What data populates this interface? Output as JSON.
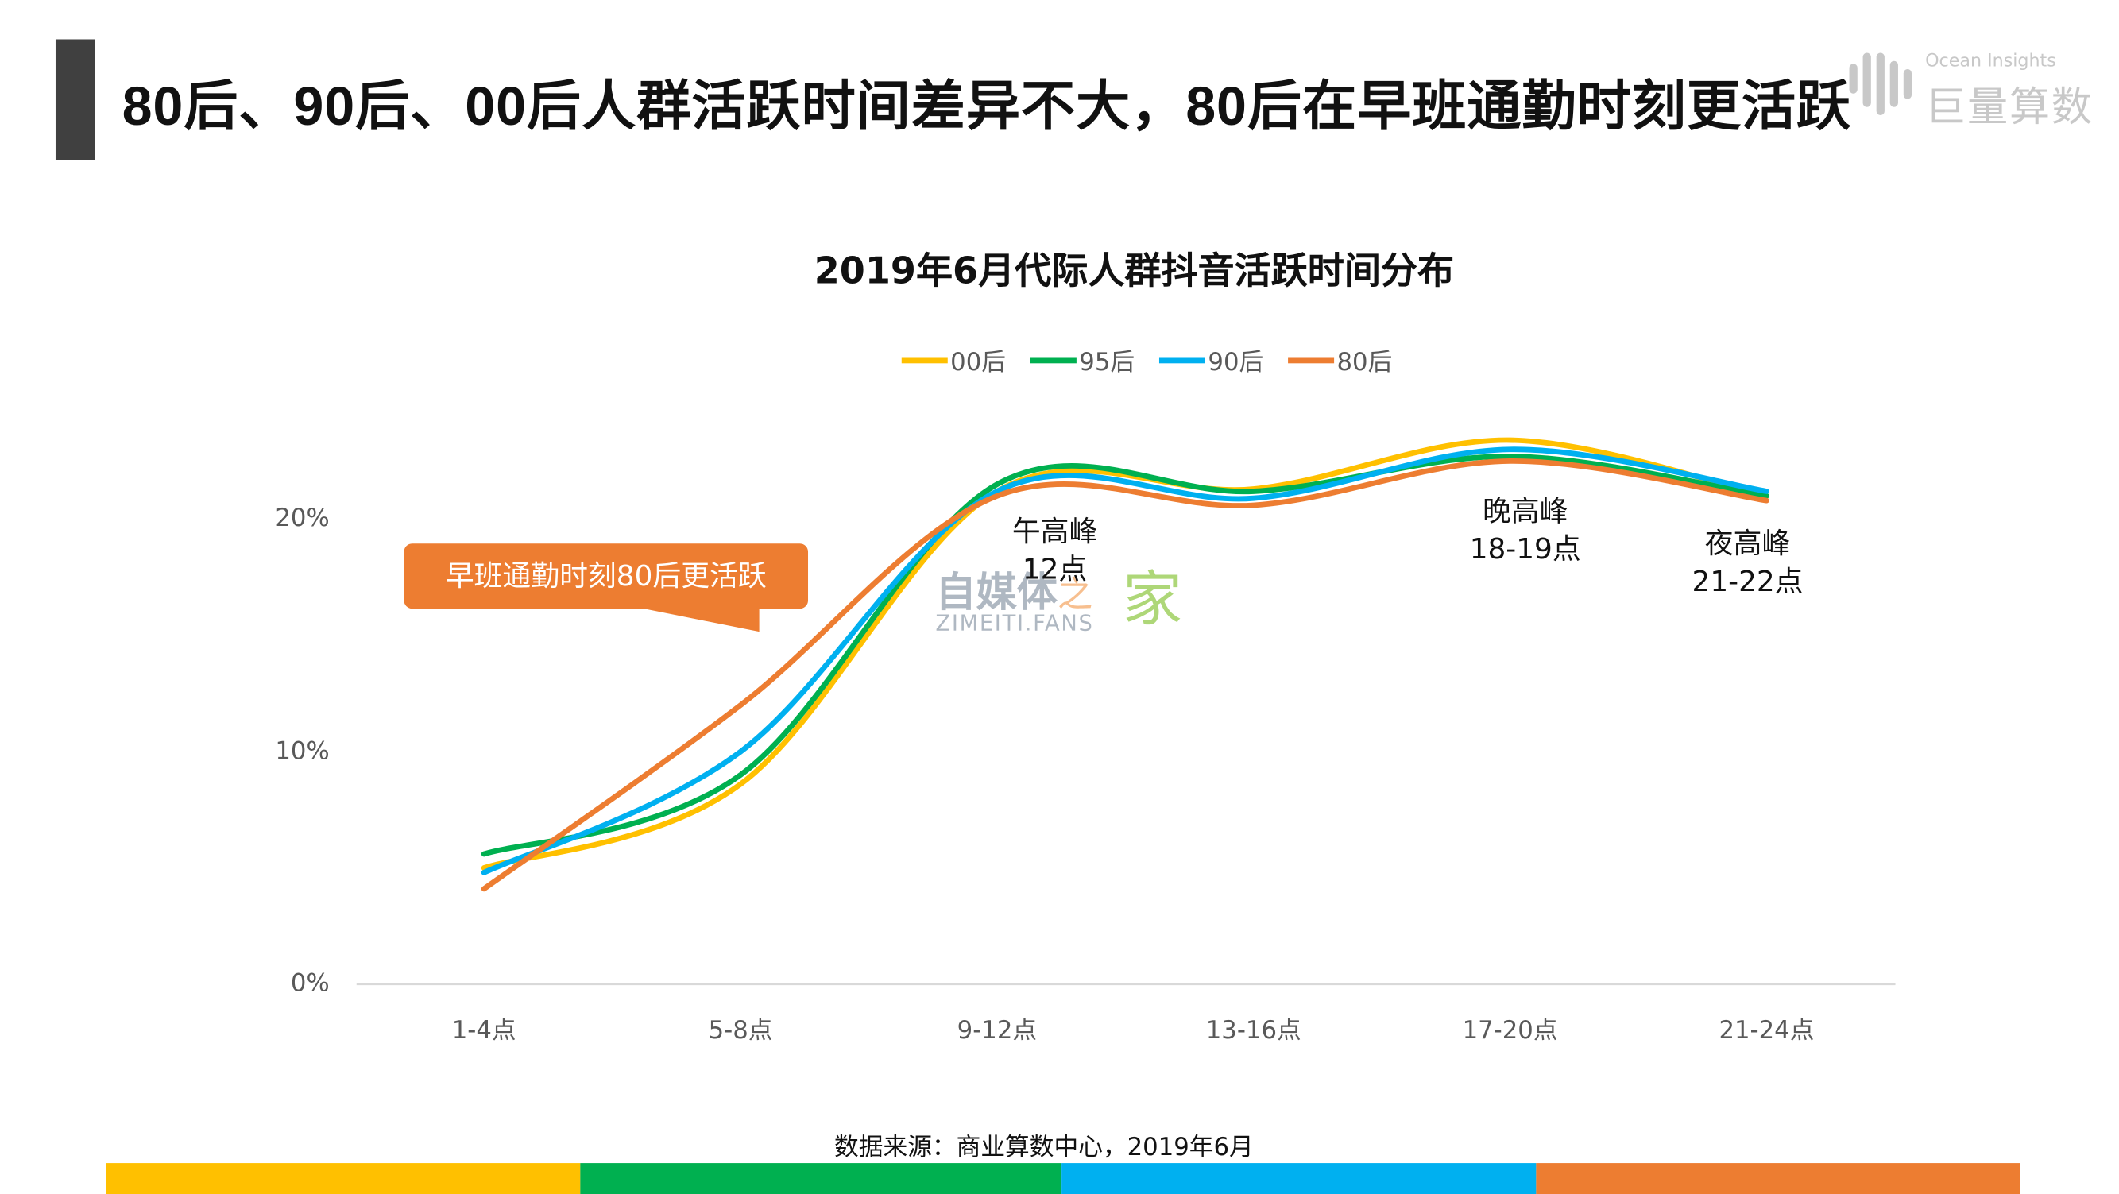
{
  "header": {
    "title": "80后、90后、00后人群活跃时间差异不大，80后在早班通勤时刻更活跃"
  },
  "logo": {
    "en": "Ocean Insights",
    "cn": "巨量算数"
  },
  "watermark": {
    "cn": "自媒体",
    "mid": "之",
    "home": "家",
    "en": "ZIMEITI.FANS"
  },
  "callout": {
    "text": "早班通勤时刻80后更活跃"
  },
  "annotations": [
    {
      "line1": "午高峰",
      "line2": "12点"
    },
    {
      "line1": "晚高峰",
      "line2": "18-19点"
    },
    {
      "line1": "夜高峰",
      "line2": "21-22点"
    }
  ],
  "source": "数据来源：商业算数中心，2019年6月",
  "bottom_bar_colors": [
    "#ffc000",
    "#00b050",
    "#00b0f0",
    "#ed7d31"
  ],
  "chart_data": {
    "type": "line",
    "smooth": true,
    "title": "2019年6月代际人群抖音活跃时间分布",
    "categories": [
      "1-4点",
      "5-8点",
      "9-12点",
      "13-16点",
      "17-20点",
      "21-24点"
    ],
    "yticks": [
      "0%",
      "10%",
      "20%"
    ],
    "ylim": [
      0,
      20
    ],
    "grid": false,
    "legend_position": "top",
    "series": [
      {
        "name": "00后",
        "color": "#ffc000",
        "values": [
          5.0,
          8.6,
          21.2,
          21.3,
          23.4,
          21.0
        ]
      },
      {
        "name": "95后",
        "color": "#00b050",
        "values": [
          5.6,
          9.0,
          21.5,
          21.2,
          22.7,
          21.0
        ]
      },
      {
        "name": "90后",
        "color": "#00b0f0",
        "values": [
          4.8,
          10.0,
          21.2,
          20.9,
          23.0,
          21.2
        ]
      },
      {
        "name": "80后",
        "color": "#ed7d31",
        "values": [
          4.1,
          12.0,
          21.0,
          20.6,
          22.5,
          20.8
        ]
      }
    ]
  }
}
